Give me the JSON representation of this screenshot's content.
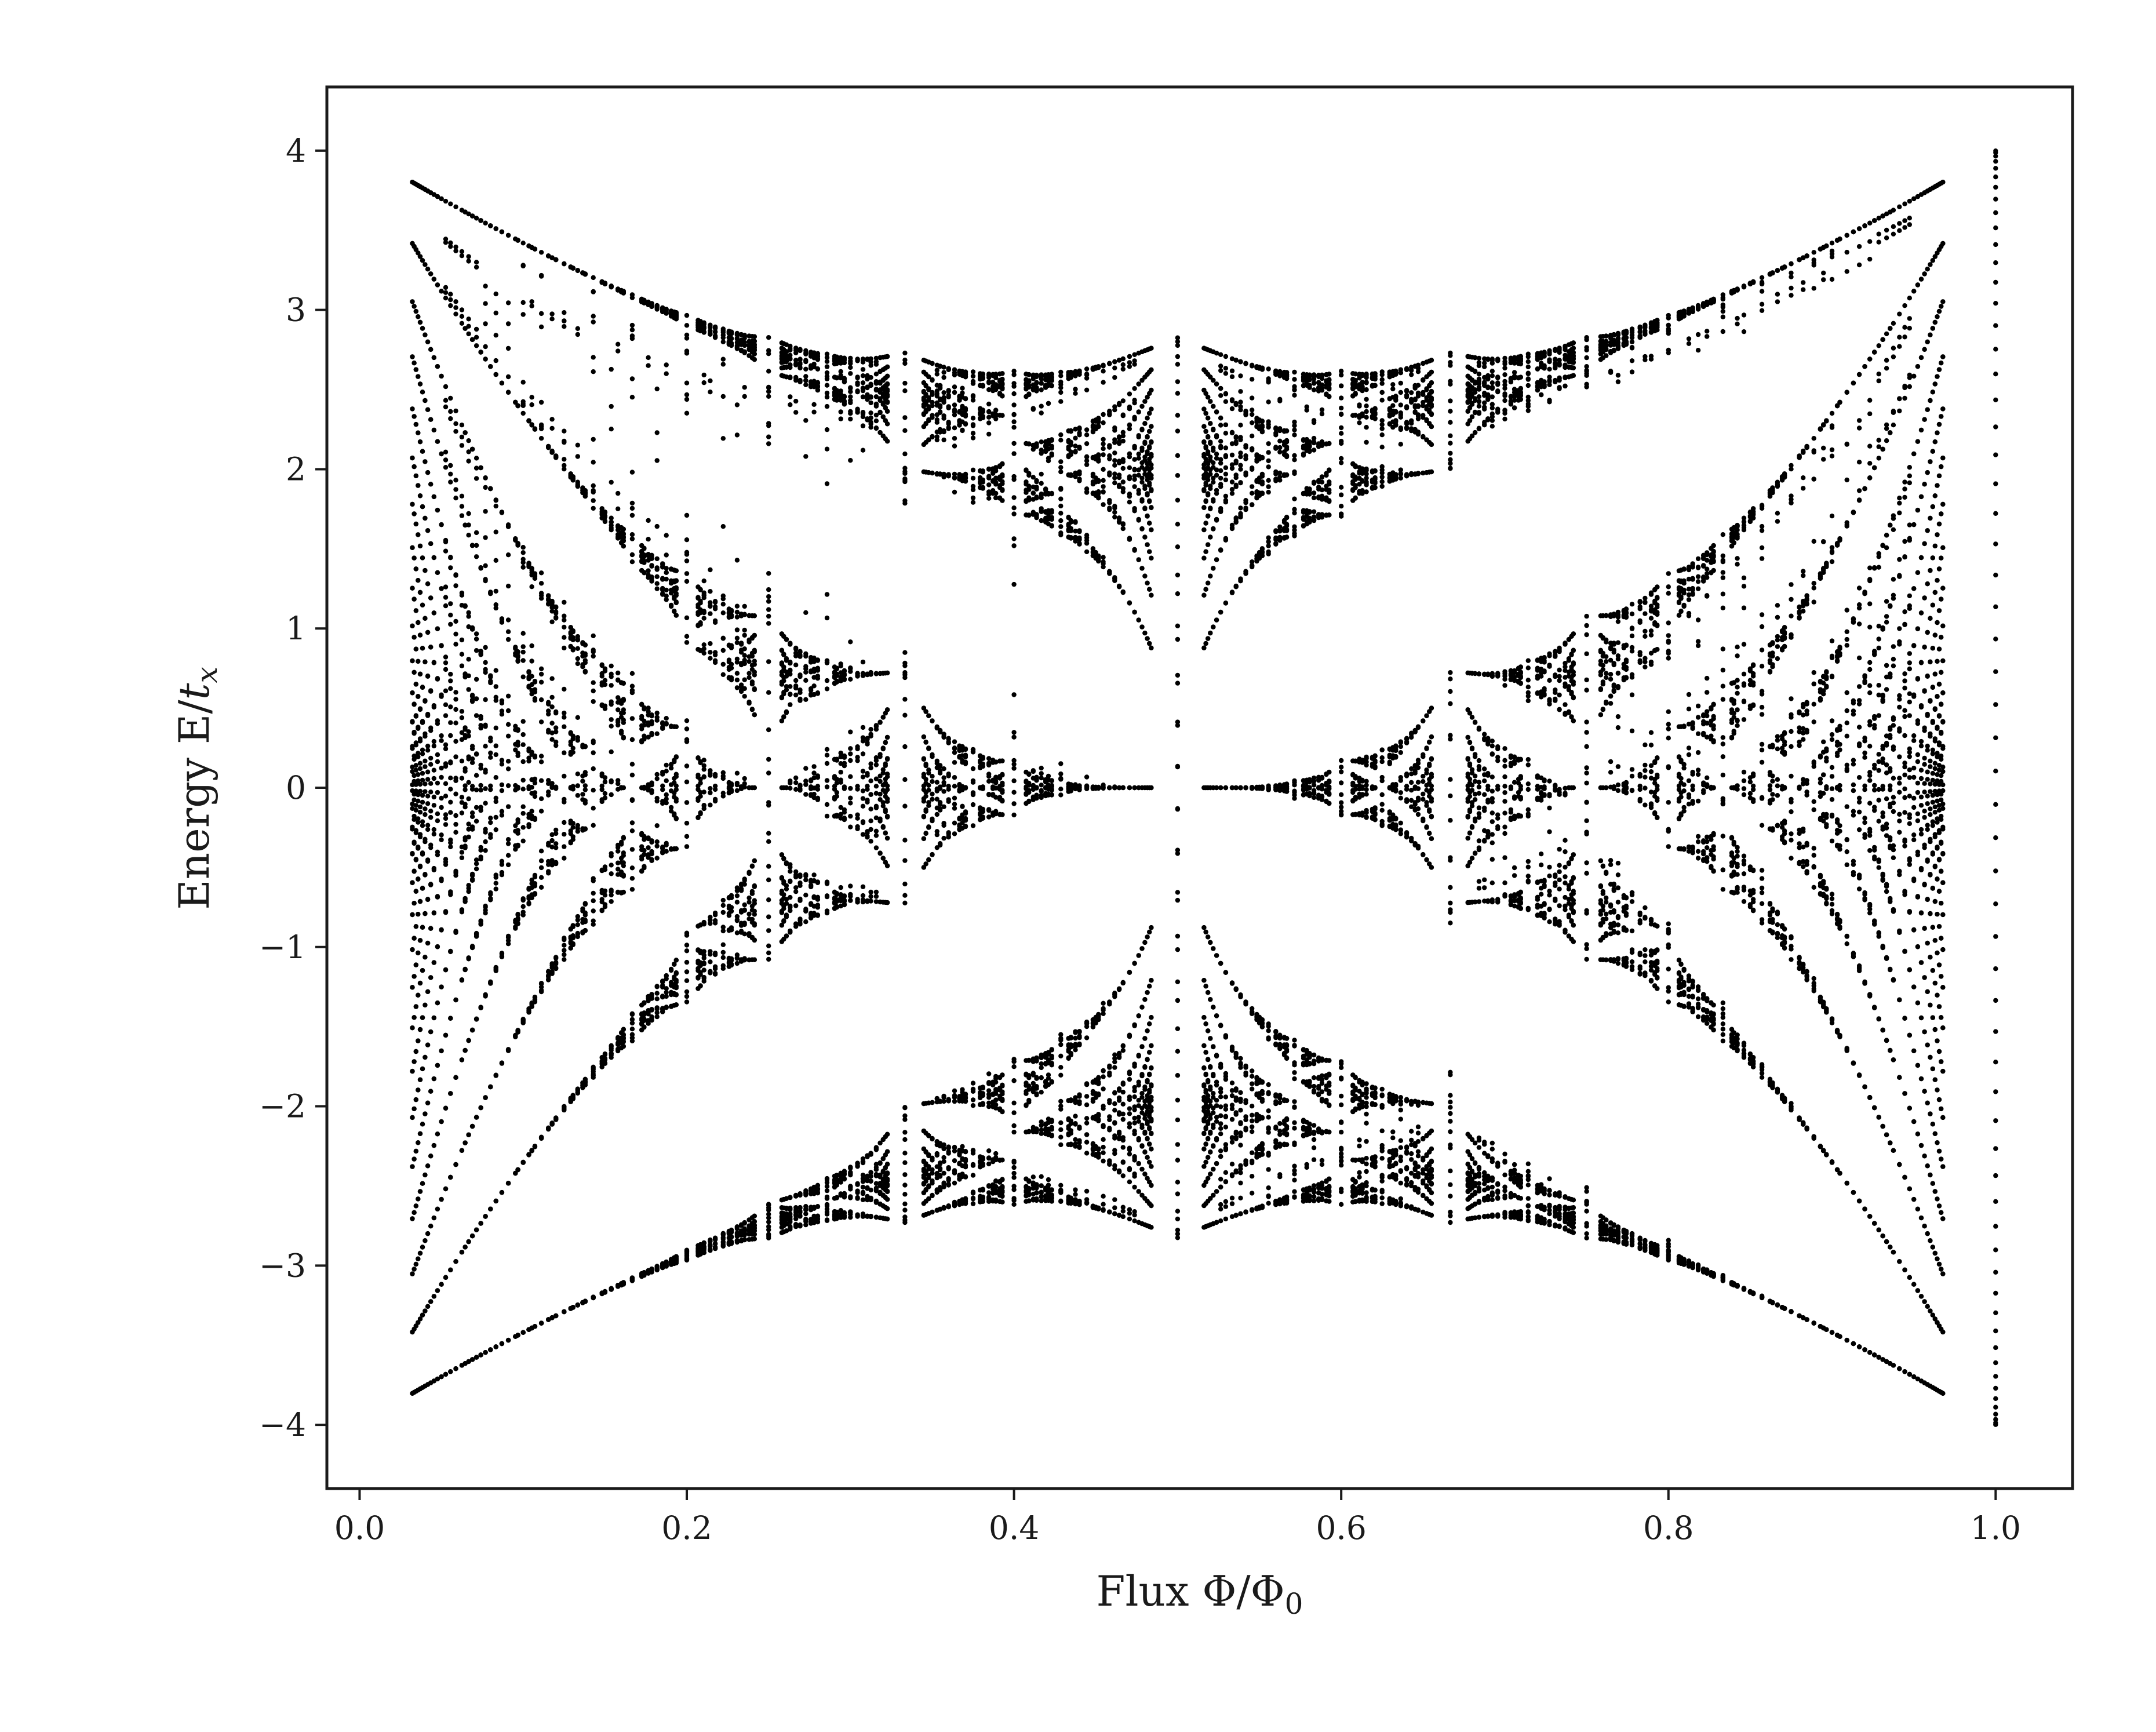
{
  "chart_data": {
    "type": "scatter",
    "title": "",
    "xlabel": {
      "prefix": "Flux ",
      "symbol": "Φ/Φ",
      "subscript": "0"
    },
    "ylabel": {
      "prefix": "Energy E/",
      "symbol": "t",
      "subscript": "x"
    },
    "xlim": [
      -0.02,
      1.047
    ],
    "ylim": [
      -4.4,
      4.4
    ],
    "xticks": [
      0.0,
      0.2,
      0.4,
      0.6,
      0.8,
      1.0
    ],
    "xtick_labels": [
      "0.0",
      "0.2",
      "0.4",
      "0.6",
      "0.8",
      "1.0"
    ],
    "yticks": [
      4,
      3,
      2,
      1,
      0,
      -1,
      -2,
      -3,
      -4
    ],
    "ytick_labels": [
      "4",
      "3",
      "2",
      "1",
      "0",
      "−1",
      "−2",
      "−3",
      "−4"
    ],
    "grid": false,
    "marker_color": "#000000",
    "series": [
      {
        "description": "Hofstadter butterfly: eigenvalues of Harper's equation E = 2cos(k) + 2cos(2πΦk/Φ0 ...) sampled at rational flux values p/q for q up to 31, plotted on Φ/Φ0 from about 0.03 to 0.97, plus column at Φ/Φ0 = 1",
        "points": "generated"
      }
    ]
  }
}
